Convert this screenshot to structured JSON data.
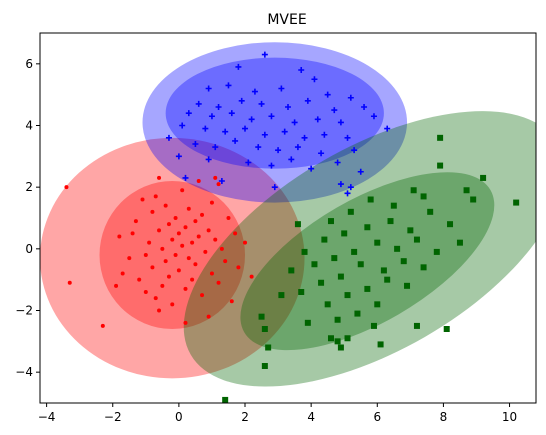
{
  "chart_data": {
    "type": "scatter",
    "title": "MVEE",
    "xlabel": "",
    "ylabel": "",
    "xlim": [
      -4.2,
      10.8
    ],
    "ylim": [
      -5.0,
      7.0
    ],
    "xticks": [
      -4,
      -2,
      0,
      2,
      4,
      6,
      8,
      10
    ],
    "yticks": [
      -4,
      -2,
      0,
      2,
      4,
      6
    ],
    "grid": false,
    "legend": "none",
    "clusters": [
      {
        "color": "#ff0000",
        "marker": "dot",
        "center": [
          0.0,
          0.1
        ],
        "outer_ellipse": {
          "cx": -0.2,
          "cy": -0.3,
          "rx": 4.0,
          "ry": 3.9,
          "angle_deg": 0,
          "opacity": 0.35
        },
        "inner_ellipse": {
          "cx": -0.2,
          "cy": -0.2,
          "rx": 2.2,
          "ry": 2.4,
          "angle_deg": 0,
          "opacity": 0.35
        },
        "points": [
          [
            -3.4,
            2.0
          ],
          [
            -3.3,
            -1.1
          ],
          [
            -2.3,
            -2.5
          ],
          [
            -1.8,
            0.4
          ],
          [
            -1.7,
            -0.8
          ],
          [
            -1.5,
            -0.3
          ],
          [
            -1.4,
            0.5
          ],
          [
            -1.3,
            0.9
          ],
          [
            -1.2,
            -1.0
          ],
          [
            -1.1,
            1.6
          ],
          [
            -1.0,
            -0.2
          ],
          [
            -1.0,
            -1.4
          ],
          [
            -0.9,
            0.2
          ],
          [
            -0.8,
            1.2
          ],
          [
            -0.8,
            -0.6
          ],
          [
            -0.7,
            1.7
          ],
          [
            -0.7,
            -1.6
          ],
          [
            -0.6,
            0.6
          ],
          [
            -0.6,
            -2.0
          ],
          [
            -0.5,
            0.0
          ],
          [
            -0.5,
            -1.2
          ],
          [
            -0.4,
            1.4
          ],
          [
            -0.4,
            -0.4
          ],
          [
            -0.3,
            0.8
          ],
          [
            -0.3,
            -0.9
          ],
          [
            -0.2,
            0.3
          ],
          [
            -0.2,
            -1.8
          ],
          [
            -0.1,
            1.0
          ],
          [
            -0.1,
            -0.2
          ],
          [
            0.0,
            0.5
          ],
          [
            0.0,
            -0.7
          ],
          [
            0.1,
            1.9
          ],
          [
            0.1,
            0.1
          ],
          [
            0.2,
            -1.3
          ],
          [
            0.2,
            0.7
          ],
          [
            0.3,
            -0.3
          ],
          [
            0.3,
            1.3
          ],
          [
            0.4,
            0.2
          ],
          [
            0.4,
            -1.0
          ],
          [
            0.5,
            0.9
          ],
          [
            0.5,
            -0.5
          ],
          [
            0.6,
            2.2
          ],
          [
            0.6,
            0.4
          ],
          [
            0.7,
            -1.5
          ],
          [
            0.7,
            1.1
          ],
          [
            0.8,
            -0.1
          ],
          [
            0.9,
            0.6
          ],
          [
            0.9,
            -2.2
          ],
          [
            1.0,
            1.5
          ],
          [
            1.0,
            -0.8
          ],
          [
            1.1,
            0.3
          ],
          [
            1.2,
            -1.1
          ],
          [
            1.2,
            2.1
          ],
          [
            1.3,
            0.0
          ],
          [
            1.4,
            -0.4
          ],
          [
            1.5,
            1.0
          ],
          [
            1.6,
            -1.7
          ],
          [
            1.7,
            0.5
          ],
          [
            1.8,
            -0.6
          ],
          [
            2.0,
            0.2
          ],
          [
            2.2,
            -0.9
          ],
          [
            1.1,
            2.3
          ],
          [
            -0.6,
            2.3
          ],
          [
            -1.9,
            -1.2
          ],
          [
            0.2,
            -2.4
          ]
        ]
      },
      {
        "color": "#0000ff",
        "marker": "plus",
        "center": [
          3.0,
          4.3
        ],
        "outer_ellipse": {
          "cx": 2.9,
          "cy": 4.1,
          "rx": 4.0,
          "ry": 2.6,
          "angle_deg": 0,
          "opacity": 0.35
        },
        "inner_ellipse": {
          "cx": 2.9,
          "cy": 4.4,
          "rx": 3.3,
          "ry": 1.8,
          "angle_deg": 0,
          "opacity": 0.35
        },
        "points": [
          [
            2.6,
            6.3
          ],
          [
            1.8,
            5.9
          ],
          [
            3.7,
            5.8
          ],
          [
            4.1,
            5.5
          ],
          [
            0.9,
            5.2
          ],
          [
            1.5,
            5.3
          ],
          [
            2.3,
            5.1
          ],
          [
            3.1,
            5.2
          ],
          [
            4.5,
            5.0
          ],
          [
            5.2,
            4.9
          ],
          [
            0.6,
            4.7
          ],
          [
            1.2,
            4.6
          ],
          [
            1.9,
            4.8
          ],
          [
            2.5,
            4.7
          ],
          [
            3.3,
            4.6
          ],
          [
            3.9,
            4.8
          ],
          [
            4.7,
            4.5
          ],
          [
            5.6,
            4.6
          ],
          [
            0.3,
            4.4
          ],
          [
            1.0,
            4.3
          ],
          [
            1.6,
            4.4
          ],
          [
            2.2,
            4.2
          ],
          [
            2.8,
            4.3
          ],
          [
            3.5,
            4.1
          ],
          [
            4.2,
            4.2
          ],
          [
            4.9,
            4.1
          ],
          [
            5.9,
            4.3
          ],
          [
            0.1,
            4.0
          ],
          [
            0.8,
            3.9
          ],
          [
            1.4,
            3.8
          ],
          [
            2.0,
            3.9
          ],
          [
            2.6,
            3.7
          ],
          [
            3.2,
            3.8
          ],
          [
            3.8,
            3.6
          ],
          [
            4.4,
            3.7
          ],
          [
            5.1,
            3.6
          ],
          [
            6.3,
            3.9
          ],
          [
            -0.3,
            3.6
          ],
          [
            0.5,
            3.4
          ],
          [
            1.1,
            3.3
          ],
          [
            1.7,
            3.5
          ],
          [
            2.4,
            3.3
          ],
          [
            3.0,
            3.2
          ],
          [
            3.6,
            3.3
          ],
          [
            4.3,
            3.1
          ],
          [
            5.3,
            3.2
          ],
          [
            0.0,
            3.0
          ],
          [
            0.9,
            2.9
          ],
          [
            2.1,
            2.8
          ],
          [
            2.8,
            2.7
          ],
          [
            3.4,
            2.9
          ],
          [
            4.0,
            2.6
          ],
          [
            4.8,
            2.8
          ],
          [
            5.5,
            2.5
          ],
          [
            0.2,
            2.3
          ],
          [
            1.3,
            2.2
          ],
          [
            2.9,
            2.0
          ],
          [
            4.9,
            2.1
          ],
          [
            5.2,
            2.0
          ],
          [
            5.1,
            1.8
          ]
        ]
      },
      {
        "color": "#006400",
        "marker": "square",
        "center": [
          6.0,
          0.4
        ],
        "outer_ellipse": {
          "cx": 5.9,
          "cy": 0.0,
          "rx": 6.4,
          "ry": 3.3,
          "angle_deg": 30,
          "opacity": 0.35
        },
        "inner_ellipse": {
          "cx": 5.7,
          "cy": -0.4,
          "rx": 4.3,
          "ry": 2.0,
          "angle_deg": 30,
          "opacity": 0.35
        },
        "points": [
          [
            7.9,
            3.6
          ],
          [
            7.9,
            2.7
          ],
          [
            9.2,
            2.3
          ],
          [
            8.7,
            1.9
          ],
          [
            8.9,
            1.6
          ],
          [
            10.2,
            1.5
          ],
          [
            7.4,
            1.7
          ],
          [
            7.1,
            1.9
          ],
          [
            6.5,
            1.4
          ],
          [
            5.8,
            1.6
          ],
          [
            5.2,
            1.2
          ],
          [
            4.6,
            0.9
          ],
          [
            3.6,
            0.8
          ],
          [
            7.6,
            1.2
          ],
          [
            8.2,
            0.8
          ],
          [
            7.0,
            0.6
          ],
          [
            6.4,
            0.9
          ],
          [
            5.7,
            0.7
          ],
          [
            5.0,
            0.5
          ],
          [
            4.4,
            0.3
          ],
          [
            3.8,
            -0.1
          ],
          [
            8.5,
            0.2
          ],
          [
            7.8,
            -0.1
          ],
          [
            7.2,
            0.3
          ],
          [
            6.6,
            0.0
          ],
          [
            6.0,
            0.2
          ],
          [
            5.3,
            -0.1
          ],
          [
            4.7,
            -0.3
          ],
          [
            4.1,
            -0.5
          ],
          [
            3.4,
            -0.7
          ],
          [
            7.4,
            -0.6
          ],
          [
            6.8,
            -0.4
          ],
          [
            6.2,
            -0.7
          ],
          [
            5.5,
            -0.5
          ],
          [
            4.9,
            -0.9
          ],
          [
            4.3,
            -1.1
          ],
          [
            3.7,
            -1.4
          ],
          [
            6.9,
            -1.2
          ],
          [
            6.3,
            -1.0
          ],
          [
            5.7,
            -1.3
          ],
          [
            5.1,
            -1.5
          ],
          [
            4.5,
            -1.8
          ],
          [
            3.1,
            -1.5
          ],
          [
            6.0,
            -1.8
          ],
          [
            5.4,
            -2.1
          ],
          [
            4.8,
            -2.3
          ],
          [
            3.9,
            -2.4
          ],
          [
            2.5,
            -2.2
          ],
          [
            2.6,
            -2.6
          ],
          [
            5.9,
            -2.5
          ],
          [
            7.2,
            -2.5
          ],
          [
            4.6,
            -2.9
          ],
          [
            5.1,
            -2.9
          ],
          [
            4.8,
            -3.0
          ],
          [
            6.1,
            -3.1
          ],
          [
            2.7,
            -3.2
          ],
          [
            2.6,
            -3.8
          ],
          [
            1.4,
            -4.9
          ],
          [
            4.9,
            -3.2
          ],
          [
            8.1,
            -2.6
          ]
        ]
      }
    ]
  }
}
